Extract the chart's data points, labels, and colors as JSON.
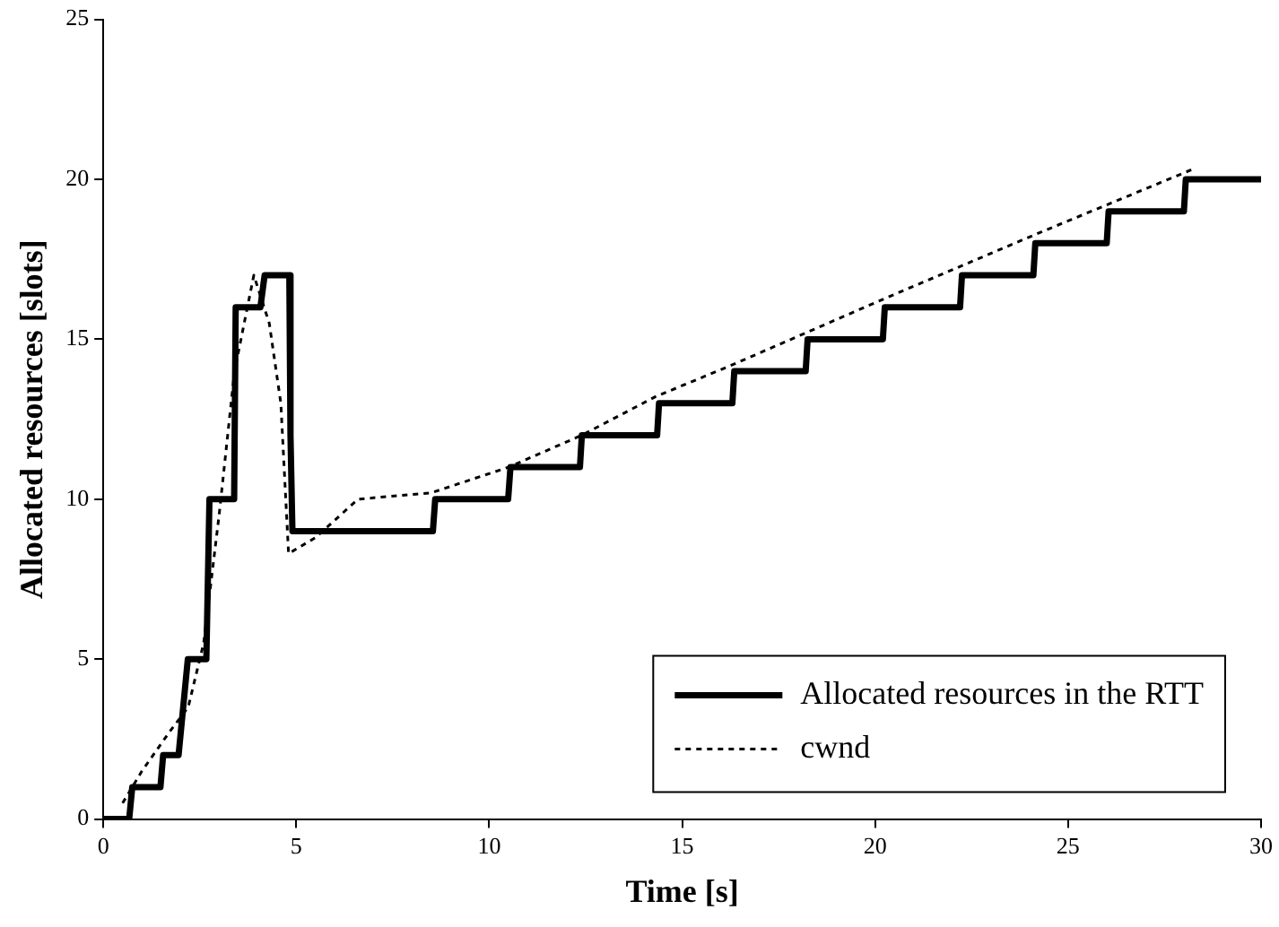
{
  "chart_data": {
    "type": "line",
    "xlabel": "Time [s]",
    "ylabel": "Allocated resources [slots]",
    "xlim": [
      0,
      30
    ],
    "xticks": [
      0,
      5,
      10,
      15,
      20,
      25,
      30
    ],
    "ylim": [
      0,
      25
    ],
    "yticks": [
      0,
      5,
      10,
      15,
      20,
      25
    ],
    "grid": false,
    "legend": "bottom right",
    "marker": "none",
    "series": [
      {
        "name": "Allocated resources in the RTT",
        "color": "#000000",
        "line_style": "solid",
        "x": [
          0,
          0.67,
          0.75,
          1.48,
          1.55,
          1.95,
          2.19,
          2.67,
          2.75,
          3.39,
          3.43,
          4.07,
          4.18,
          4.82,
          4.85,
          4.9,
          8.54,
          8.6,
          10.49,
          10.55,
          12.35,
          12.4,
          14.35,
          14.4,
          16.3,
          16.35,
          18.2,
          18.25,
          20.2,
          20.25,
          22.2,
          22.25,
          24.1,
          24.15,
          26,
          26.05,
          28,
          28.05,
          30
        ],
        "values": [
          0,
          0,
          1,
          1,
          2,
          2,
          5,
          5,
          10,
          10,
          16,
          16,
          17,
          17,
          12,
          9,
          9,
          10,
          10,
          11,
          11,
          12,
          12,
          13,
          13,
          14,
          14,
          15,
          15,
          16,
          16,
          17,
          17,
          18,
          18,
          19,
          19,
          20,
          20
        ]
      },
      {
        "name": "cwnd",
        "color": "#000000",
        "line_style": "dotted",
        "x": [
          0.5,
          1,
          1.7,
          2.2,
          2.6,
          3,
          3.4,
          3.9,
          4.3,
          4.6,
          4.8,
          5.5,
          6.6,
          8.5,
          10.5,
          12.4,
          14.3,
          16.3,
          20.3,
          24.2,
          28.2
        ],
        "values": [
          0.5,
          1.5,
          2.7,
          3.5,
          5.5,
          9.5,
          14,
          17,
          15.5,
          13,
          8.3,
          8.8,
          10,
          10.2,
          11,
          12,
          13.2,
          14.2,
          16.3,
          18.3,
          20.3
        ]
      }
    ]
  }
}
